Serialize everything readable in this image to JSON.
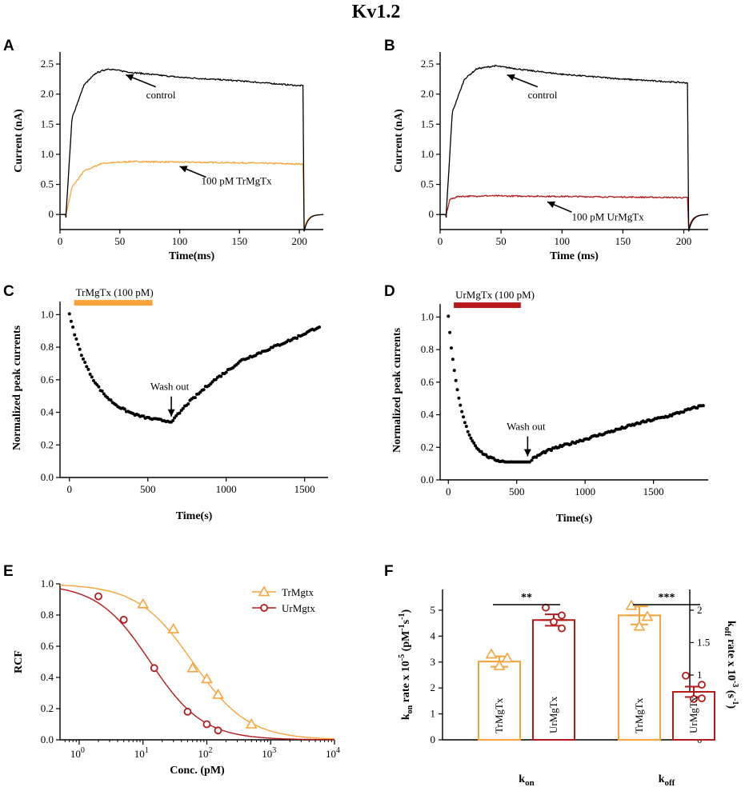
{
  "title": "Kv1.2",
  "colors": {
    "tr": "#F7A33A",
    "ur": "#B51919",
    "black": "#000000"
  },
  "chart_data": [
    {
      "panel": "A",
      "type": "line",
      "xlabel": "Time(ms)",
      "ylabel": "Current (nA)",
      "xlim": [
        0,
        220
      ],
      "ylim": [
        -0.25,
        2.7
      ],
      "xticks": [
        "0",
        "50",
        "100",
        "150",
        "200"
      ],
      "yticks": [
        "0",
        "0.5",
        "1.0",
        "1.5",
        "2.0",
        "2.5"
      ],
      "series": [
        {
          "name": "control",
          "color": "#000000",
          "steady": [
            [
              5,
              0
            ],
            [
              10,
              1.6
            ],
            [
              20,
              2.15
            ],
            [
              30,
              2.35
            ],
            [
              40,
              2.42
            ],
            [
              60,
              2.36
            ],
            [
              100,
              2.28
            ],
            [
              150,
              2.22
            ],
            [
              200,
              2.14
            ]
          ]
        },
        {
          "name": "100 pM TrMgTx",
          "color": "#F7A33A",
          "steady": [
            [
              5,
              0
            ],
            [
              10,
              0.45
            ],
            [
              20,
              0.72
            ],
            [
              35,
              0.85
            ],
            [
              60,
              0.88
            ],
            [
              100,
              0.87
            ],
            [
              150,
              0.86
            ],
            [
              200,
              0.84
            ]
          ]
        }
      ],
      "annotations": [
        "control",
        "100 pM TrMgTx"
      ]
    },
    {
      "panel": "B",
      "type": "line",
      "xlabel": "Time (ms)",
      "ylabel": "Current (nA)",
      "xlim": [
        0,
        220
      ],
      "ylim": [
        -0.25,
        2.7
      ],
      "xticks": [
        "0",
        "50",
        "100",
        "150",
        "200"
      ],
      "yticks": [
        "0",
        "0.5",
        "1.0",
        "1.5",
        "2.0",
        "2.5"
      ],
      "series": [
        {
          "name": "control",
          "color": "#000000",
          "steady": [
            [
              5,
              0
            ],
            [
              10,
              1.7
            ],
            [
              20,
              2.25
            ],
            [
              30,
              2.42
            ],
            [
              45,
              2.47
            ],
            [
              70,
              2.4
            ],
            [
              100,
              2.33
            ],
            [
              150,
              2.25
            ],
            [
              200,
              2.19
            ]
          ]
        },
        {
          "name": "100 pM UrMgTx",
          "color": "#B51919",
          "steady": [
            [
              5,
              0
            ],
            [
              8,
              0.25
            ],
            [
              15,
              0.3
            ],
            [
              40,
              0.31
            ],
            [
              100,
              0.3
            ],
            [
              150,
              0.29
            ],
            [
              200,
              0.28
            ]
          ]
        }
      ],
      "annotations": [
        "control",
        "100 pM UrMgTx"
      ]
    },
    {
      "panel": "C",
      "type": "scatter",
      "xlabel": "Time(s)",
      "ylabel": "Normalized peak currents",
      "xlim": [
        -60,
        1650
      ],
      "ylim": [
        0,
        1.1
      ],
      "xticks": [
        "0",
        "500",
        "1000",
        "1500"
      ],
      "yticks": [
        "0.0",
        "0.2",
        "0.4",
        "0.6",
        "0.8",
        "1.0"
      ],
      "bar_label": "TrMgTx (100 pM)",
      "bar_range": [
        30,
        530
      ],
      "bar_color": "#F7A33A",
      "washout_label": "Wash out",
      "washout_x": 650,
      "decay": {
        "t0": 0,
        "t1": 660,
        "y_end": 0.35,
        "tau": 170
      },
      "recovery": [
        [
          660,
          0.35
        ],
        [
          750,
          0.45
        ],
        [
          900,
          0.58
        ],
        [
          1100,
          0.72
        ],
        [
          1300,
          0.8
        ],
        [
          1450,
          0.86
        ],
        [
          1600,
          0.93
        ]
      ]
    },
    {
      "panel": "D",
      "type": "scatter",
      "xlabel": "Time(s)",
      "ylabel": "Normalized peak currents",
      "xlim": [
        -60,
        1900
      ],
      "ylim": [
        0,
        1.1
      ],
      "xticks": [
        "0",
        "500",
        "1000",
        "1500"
      ],
      "yticks": [
        "0.0",
        "0.2",
        "0.4",
        "0.6",
        "0.8",
        "1.0"
      ],
      "bar_label": "UrMgTx  (100 pM)",
      "bar_range": [
        40,
        530
      ],
      "bar_color": "#B51919",
      "washout_label": "Wash out",
      "washout_x": 580,
      "decay": {
        "t0": 0,
        "t1": 600,
        "y_end": 0.12,
        "tau": 95
      },
      "recovery": [
        [
          600,
          0.12
        ],
        [
          700,
          0.17
        ],
        [
          800,
          0.2
        ],
        [
          1000,
          0.25
        ],
        [
          1200,
          0.3
        ],
        [
          1400,
          0.35
        ],
        [
          1600,
          0.39
        ],
        [
          1870,
          0.46
        ]
      ]
    },
    {
      "panel": "E",
      "type": "scatter",
      "xlabel": "Conc. (pM)",
      "ylabel": "RCF",
      "xlim_log10": [
        -0.3,
        4
      ],
      "ylim": [
        0,
        1.0
      ],
      "xticks": [
        {
          "base": "10",
          "exp": "0",
          "v": 0
        },
        {
          "base": "10",
          "exp": "1",
          "v": 1
        },
        {
          "base": "10",
          "exp": "2",
          "v": 2
        },
        {
          "base": "10",
          "exp": "3",
          "v": 3
        },
        {
          "base": "10",
          "exp": "4",
          "v": 4
        }
      ],
      "yticks": [
        "0.0",
        "0.2",
        "0.4",
        "0.6",
        "0.8",
        "1.0"
      ],
      "series": [
        {
          "name": "TrMgtx",
          "color": "#F7A33A",
          "marker": "triangle",
          "ic50": 60,
          "hill": 1.0,
          "points": [
            [
              10,
              0.87
            ],
            [
              30,
              0.71
            ],
            [
              60,
              0.46
            ],
            [
              100,
              0.39
            ],
            [
              150,
              0.29
            ],
            [
              500,
              0.1
            ]
          ]
        },
        {
          "name": "UrMgtx",
          "color": "#B51919",
          "marker": "circle",
          "ic50": 13,
          "hill": 1.05,
          "points": [
            [
              2,
              0.92
            ],
            [
              5,
              0.77
            ],
            [
              15,
              0.46
            ],
            [
              50,
              0.18
            ],
            [
              100,
              0.1
            ],
            [
              150,
              0.06
            ]
          ]
        }
      ]
    },
    {
      "panel": "F",
      "type": "bar",
      "ylabel_left": {
        "pre": "k",
        "sub": "on",
        "mid": " rate x 10",
        "sup1": "-5",
        "mid2": " (pM",
        "sup2": "-1",
        "mid3": "s",
        "sup3": "-1",
        "post": ")"
      },
      "ylabel_right": {
        "pre": "k",
        "sub": "off",
        "mid": " rate x 10",
        "sup1": "-3",
        "mid2": " (s",
        "sup2": "-1",
        "post": ")"
      },
      "ylim_left": [
        0,
        5.8
      ],
      "ylim_right": [
        0,
        2.32
      ],
      "yticks_left": [
        "0",
        "1",
        "2",
        "3",
        "4",
        "5"
      ],
      "yticks_right": [
        "0",
        "0.5",
        "1",
        "1.5",
        "2"
      ],
      "groups": [
        {
          "label": "k",
          "sub": "on",
          "axis": "left",
          "significance": "**",
          "bars": [
            {
              "name": "TrMgTx",
              "value": 3.02,
              "sem": 0.2,
              "color": "#F7A33A",
              "points": [
                3.3,
                3.15,
                2.85
              ]
            },
            {
              "name": "UrMgTx",
              "value": 4.62,
              "sem": 0.22,
              "color": "#B51919",
              "points": [
                5.1,
                4.8,
                4.55,
                4.3
              ]
            }
          ]
        },
        {
          "label": "k",
          "sub": "off",
          "axis": "right",
          "significance": "***",
          "bars": [
            {
              "name": "TrMgTx",
              "value": 1.92,
              "sem": 0.14,
              "color": "#F7A33A",
              "points": [
                2.07,
                1.9,
                1.75
              ]
            },
            {
              "name": "UrMgTx",
              "value": 0.74,
              "sem": 0.08,
              "color": "#B51919",
              "points": [
                0.99,
                0.85,
                0.63,
                0.64
              ]
            }
          ]
        }
      ]
    }
  ]
}
